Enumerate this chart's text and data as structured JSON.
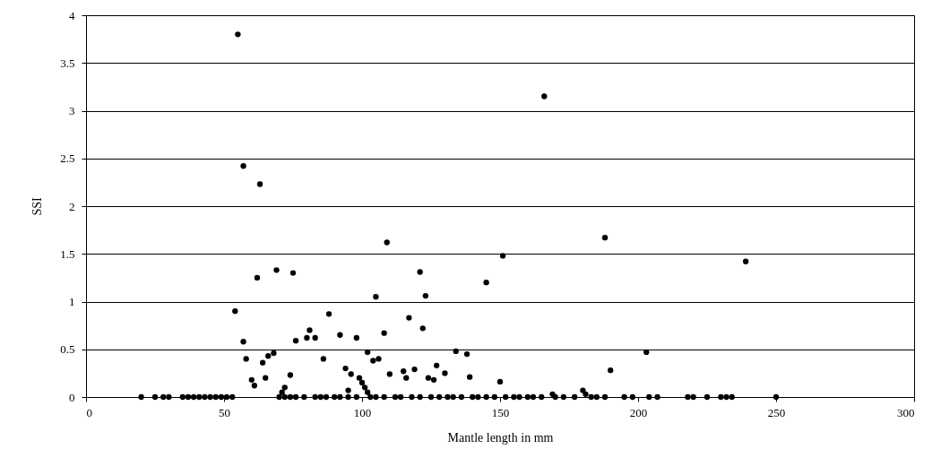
{
  "chart_data": {
    "type": "scatter",
    "xlabel": "Mantle length in mm",
    "ylabel": "SSI",
    "xlim": [
      0,
      300
    ],
    "xticks": [
      0,
      50,
      100,
      150,
      200,
      250,
      300
    ],
    "ylim": [
      0,
      4
    ],
    "yticks": [
      0,
      0.5,
      1,
      1.5,
      2,
      2.5,
      3,
      3.5,
      4
    ],
    "grid": "y",
    "marker": "circle",
    "series": [
      {
        "color": "#000000",
        "x": [
          55,
          57,
          63,
          166,
          188,
          239,
          109,
          151,
          145,
          62,
          69,
          75,
          121,
          123,
          105,
          54,
          88,
          117,
          81,
          80,
          83,
          86,
          92,
          98,
          108,
          122,
          57,
          76,
          58,
          66,
          68,
          64,
          60,
          61,
          65,
          74,
          72,
          71,
          94,
          96,
          99,
          100,
          101,
          102,
          95,
          104,
          106,
          102,
          110,
          115,
          116,
          119,
          124,
          126,
          127,
          130,
          134,
          138,
          139,
          150,
          190,
          203,
          180,
          181,
          169,
          20,
          25,
          28,
          30,
          35,
          37,
          39,
          41,
          43,
          45,
          47,
          49,
          51,
          53,
          70,
          72,
          74,
          76,
          79,
          83,
          85,
          87,
          90,
          92,
          95,
          98,
          103,
          105,
          108,
          112,
          114,
          118,
          121,
          125,
          128,
          131,
          133,
          136,
          140,
          142,
          145,
          148,
          152,
          155,
          157,
          160,
          162,
          165,
          170,
          173,
          177,
          183,
          185,
          188,
          195,
          198,
          204,
          207,
          218,
          220,
          225,
          230,
          232,
          234,
          250
        ],
        "values": [
          3.8,
          2.42,
          2.23,
          3.15,
          1.67,
          1.42,
          1.62,
          1.48,
          1.2,
          1.25,
          1.33,
          1.3,
          1.31,
          1.06,
          1.05,
          0.9,
          0.87,
          0.83,
          0.7,
          0.62,
          0.62,
          0.4,
          0.65,
          0.62,
          0.67,
          0.72,
          0.58,
          0.59,
          0.4,
          0.43,
          0.46,
          0.36,
          0.18,
          0.12,
          0.2,
          0.23,
          0.1,
          0.05,
          0.3,
          0.24,
          0.2,
          0.15,
          0.1,
          0.05,
          0.07,
          0.38,
          0.4,
          0.47,
          0.24,
          0.27,
          0.2,
          0.29,
          0.2,
          0.18,
          0.33,
          0.25,
          0.48,
          0.45,
          0.21,
          0.16,
          0.28,
          0.47,
          0.07,
          0.03,
          0.03,
          0,
          0,
          0,
          0,
          0,
          0,
          0,
          0,
          0,
          0,
          0,
          0,
          0,
          0,
          0,
          0,
          0,
          0,
          0,
          0,
          0,
          0,
          0,
          0,
          0,
          0,
          0,
          0,
          0,
          0,
          0,
          0,
          0,
          0,
          0,
          0,
          0,
          0,
          0,
          0,
          0,
          0,
          0,
          0,
          0,
          0,
          0,
          0,
          0,
          0,
          0,
          0,
          0,
          0,
          0,
          0,
          0,
          0,
          0,
          0,
          0,
          0,
          0,
          0,
          0
        ]
      }
    ]
  }
}
